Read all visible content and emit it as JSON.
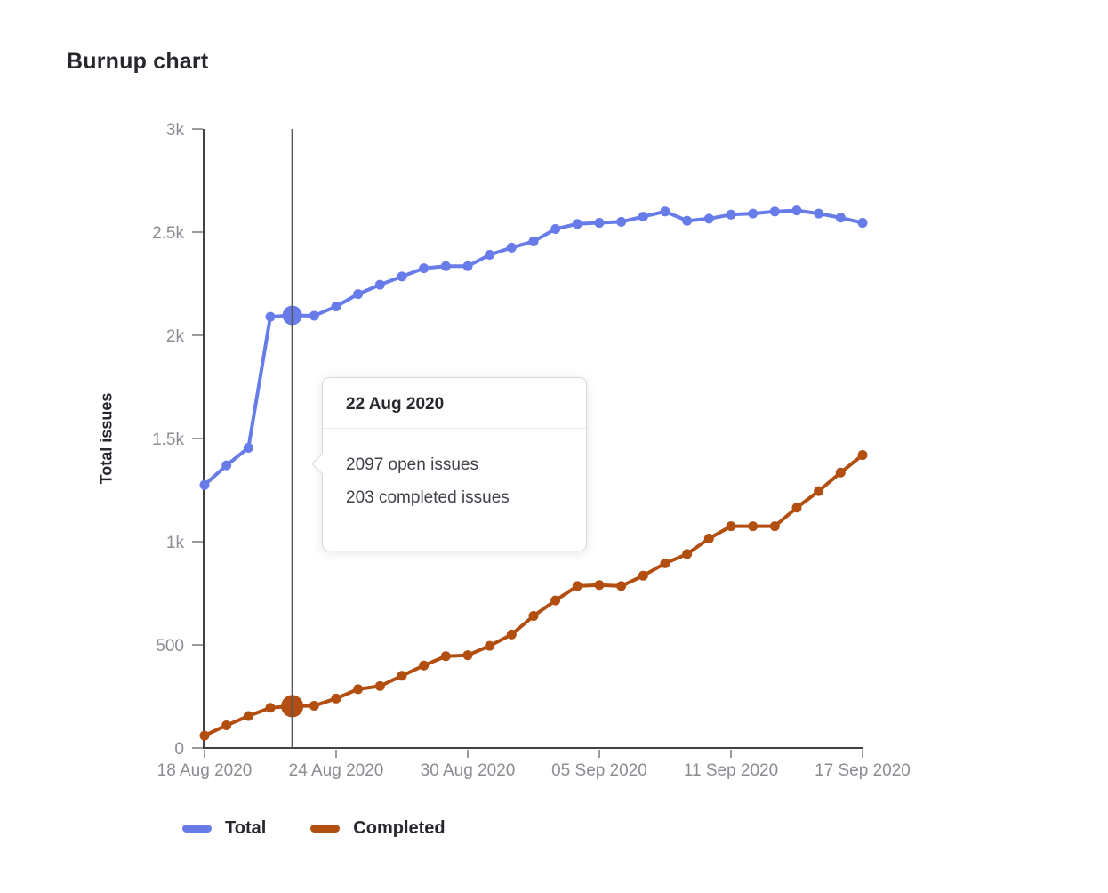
{
  "title": "Burnup chart",
  "chart_data": {
    "type": "line",
    "title": "Burnup chart",
    "xlabel": "",
    "ylabel": "Total issues",
    "ylim": [
      0,
      3000
    ],
    "grid": false,
    "legend_position": "bottom",
    "x": [
      "18 Aug 2020",
      "19 Aug 2020",
      "20 Aug 2020",
      "21 Aug 2020",
      "22 Aug 2020",
      "23 Aug 2020",
      "24 Aug 2020",
      "25 Aug 2020",
      "26 Aug 2020",
      "27 Aug 2020",
      "28 Aug 2020",
      "29 Aug 2020",
      "30 Aug 2020",
      "31 Aug 2020",
      "01 Sep 2020",
      "02 Sep 2020",
      "03 Sep 2020",
      "04 Sep 2020",
      "05 Sep 2020",
      "06 Sep 2020",
      "07 Sep 2020",
      "08 Sep 2020",
      "09 Sep 2020",
      "10 Sep 2020",
      "11 Sep 2020",
      "12 Sep 2020",
      "13 Sep 2020",
      "14 Sep 2020",
      "15 Sep 2020",
      "16 Sep 2020",
      "17 Sep 2020"
    ],
    "series": [
      {
        "name": "Total",
        "color": "#687ce9",
        "values": [
          1275,
          1370,
          1455,
          2090,
          2097,
          2095,
          2140,
          2200,
          2245,
          2285,
          2325,
          2335,
          2335,
          2390,
          2425,
          2455,
          2515,
          2540,
          2545,
          2550,
          2575,
          2600,
          2555,
          2565,
          2585,
          2590,
          2600,
          2605,
          2590,
          2570,
          2545
        ]
      },
      {
        "name": "Completed",
        "color": "#b24e10",
        "values": [
          60,
          110,
          155,
          195,
          203,
          205,
          240,
          285,
          300,
          350,
          400,
          445,
          450,
          495,
          550,
          640,
          715,
          785,
          790,
          785,
          835,
          895,
          940,
          1015,
          1075,
          1075,
          1075,
          1165,
          1245,
          1335,
          1420
        ]
      }
    ],
    "y_ticks": {
      "values": [
        0,
        500,
        1000,
        1500,
        2000,
        2500,
        3000
      ],
      "labels": [
        "0",
        "500",
        "1k",
        "1.5k",
        "2k",
        "2.5k",
        "3k"
      ]
    },
    "x_ticks": {
      "day_indices": [
        0,
        6,
        12,
        18,
        24,
        30
      ],
      "labels": [
        "18 Aug 2020",
        "24 Aug 2020",
        "30 Aug 2020",
        "05 Sep 2020",
        "11 Sep 2020",
        "17 Sep 2020"
      ]
    },
    "highlight_index": 4
  },
  "tooltip": {
    "date": "22 Aug 2020",
    "open_line": "2097 open issues",
    "completed_line": "203 completed issues"
  },
  "legend": {
    "items": [
      {
        "label": "Total",
        "color": "#687ce9"
      },
      {
        "label": "Completed",
        "color": "#b24e10"
      }
    ]
  },
  "colors": {
    "series_total": "#687ce9",
    "series_completed": "#b24e10",
    "axis_line": "#404045",
    "tick_mark": "#9a9aa0",
    "tick_label": "#8c8b92",
    "hover_line": "#56565c",
    "heading_text": "#28272d",
    "tooltip_border": "#d7d7db",
    "tooltip_body_text": "#424049"
  }
}
